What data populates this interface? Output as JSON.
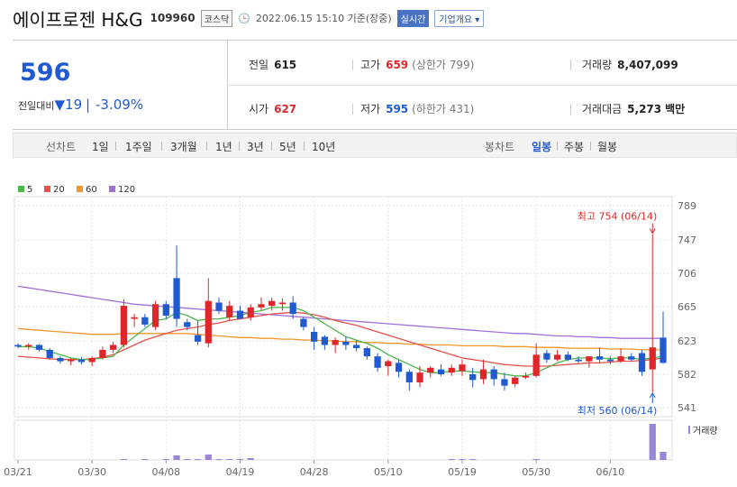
{
  "stock": {
    "name": "에이프로젠 H&G",
    "code": "109960",
    "market": "코스닥",
    "timestamp": "2022.06.15 15:10 기준(장중)",
    "realtime_label": "실시간",
    "company_info_label": "기업개요",
    "price": "596",
    "change_label": "전일대비",
    "change_value": "19",
    "change_pct": "-3.09%"
  },
  "summary": {
    "prev_label": "전일",
    "prev_value": "615",
    "high_label": "고가",
    "high_value": "659",
    "upper_limit": "(상한가 799)",
    "volume_label": "거래량",
    "volume_value": "8,407,099",
    "open_label": "시가",
    "open_value": "627",
    "low_label": "저가",
    "low_value": "595",
    "lower_limit": "(하한가 431)",
    "amount_label": "거래대금",
    "amount_value": "5,273",
    "amount_unit": "백만"
  },
  "periods": {
    "line_label": "선차트",
    "line_options": [
      "1일",
      "1주일",
      "3개월",
      "1년",
      "3년",
      "5년",
      "10년"
    ],
    "candle_label": "봉차트",
    "candle_options": [
      "일봉",
      "주봉",
      "월봉"
    ],
    "selected": "일봉"
  },
  "colors": {
    "up": "#e0262b",
    "down": "#1f5ad0",
    "ma5": "#4cb84c",
    "ma20": "#e8504a",
    "ma60": "#f0962a",
    "ma120": "#a070d8",
    "volume": "#9a86d6"
  },
  "chart_data": {
    "type": "candlestick",
    "legend": [
      "5",
      "20",
      "60",
      "120"
    ],
    "y_ticks": [
      789,
      747,
      706,
      665,
      623,
      582,
      541
    ],
    "ylim": [
      530,
      800
    ],
    "x_tick_labels": [
      "03/21",
      "03/30",
      "04/08",
      "04/19",
      "04/28",
      "05/10",
      "05/19",
      "05/30",
      "06/10"
    ],
    "x_tick_index": [
      0,
      7,
      14,
      21,
      28,
      35,
      42,
      49,
      56
    ],
    "high_annotation": "최고 754 (06/14)",
    "low_annotation": "최저 560 (06/14)",
    "volume_label": "거래량",
    "candles": [
      {
        "o": 618,
        "h": 620,
        "l": 614,
        "c": 616
      },
      {
        "o": 616,
        "h": 620,
        "l": 612,
        "c": 618
      },
      {
        "o": 618,
        "h": 619,
        "l": 610,
        "c": 612
      },
      {
        "o": 612,
        "h": 614,
        "l": 600,
        "c": 602
      },
      {
        "o": 602,
        "h": 604,
        "l": 595,
        "c": 598
      },
      {
        "o": 598,
        "h": 602,
        "l": 593,
        "c": 600
      },
      {
        "o": 600,
        "h": 603,
        "l": 594,
        "c": 597
      },
      {
        "o": 597,
        "h": 604,
        "l": 592,
        "c": 602
      },
      {
        "o": 602,
        "h": 616,
        "l": 600,
        "c": 612
      },
      {
        "o": 612,
        "h": 622,
        "l": 608,
        "c": 618
      },
      {
        "o": 618,
        "h": 674,
        "l": 615,
        "c": 666
      },
      {
        "o": 650,
        "h": 656,
        "l": 640,
        "c": 652
      },
      {
        "o": 652,
        "h": 656,
        "l": 640,
        "c": 643
      },
      {
        "o": 640,
        "h": 672,
        "l": 636,
        "c": 668
      },
      {
        "o": 668,
        "h": 672,
        "l": 650,
        "c": 654
      },
      {
        "o": 700,
        "h": 740,
        "l": 640,
        "c": 650
      },
      {
        "o": 646,
        "h": 650,
        "l": 636,
        "c": 640
      },
      {
        "o": 630,
        "h": 648,
        "l": 618,
        "c": 622
      },
      {
        "o": 620,
        "h": 700,
        "l": 615,
        "c": 672
      },
      {
        "o": 670,
        "h": 676,
        "l": 656,
        "c": 660
      },
      {
        "o": 652,
        "h": 672,
        "l": 648,
        "c": 666
      },
      {
        "o": 660,
        "h": 666,
        "l": 650,
        "c": 650
      },
      {
        "o": 652,
        "h": 668,
        "l": 648,
        "c": 664
      },
      {
        "o": 664,
        "h": 676,
        "l": 660,
        "c": 668
      },
      {
        "o": 666,
        "h": 676,
        "l": 660,
        "c": 672
      },
      {
        "o": 668,
        "h": 675,
        "l": 660,
        "c": 670
      },
      {
        "o": 670,
        "h": 678,
        "l": 650,
        "c": 656
      },
      {
        "o": 650,
        "h": 652,
        "l": 636,
        "c": 640
      },
      {
        "o": 634,
        "h": 640,
        "l": 612,
        "c": 622
      },
      {
        "o": 628,
        "h": 630,
        "l": 612,
        "c": 618
      },
      {
        "o": 618,
        "h": 627,
        "l": 608,
        "c": 624
      },
      {
        "o": 622,
        "h": 628,
        "l": 612,
        "c": 618
      },
      {
        "o": 618,
        "h": 624,
        "l": 610,
        "c": 614
      },
      {
        "o": 614,
        "h": 616,
        "l": 600,
        "c": 604
      },
      {
        "o": 604,
        "h": 608,
        "l": 585,
        "c": 590
      },
      {
        "o": 592,
        "h": 600,
        "l": 580,
        "c": 598
      },
      {
        "o": 596,
        "h": 600,
        "l": 578,
        "c": 585
      },
      {
        "o": 585,
        "h": 588,
        "l": 562,
        "c": 572
      },
      {
        "o": 572,
        "h": 592,
        "l": 566,
        "c": 584
      },
      {
        "o": 584,
        "h": 592,
        "l": 578,
        "c": 590
      },
      {
        "o": 588,
        "h": 594,
        "l": 580,
        "c": 582
      },
      {
        "o": 584,
        "h": 594,
        "l": 580,
        "c": 590
      },
      {
        "o": 586,
        "h": 600,
        "l": 580,
        "c": 594
      },
      {
        "o": 582,
        "h": 590,
        "l": 566,
        "c": 575
      },
      {
        "o": 576,
        "h": 600,
        "l": 570,
        "c": 588
      },
      {
        "o": 588,
        "h": 592,
        "l": 568,
        "c": 576
      },
      {
        "o": 576,
        "h": 584,
        "l": 562,
        "c": 568
      },
      {
        "o": 570,
        "h": 580,
        "l": 566,
        "c": 578
      },
      {
        "o": 578,
        "h": 584,
        "l": 576,
        "c": 580
      },
      {
        "o": 580,
        "h": 620,
        "l": 578,
        "c": 606
      },
      {
        "o": 608,
        "h": 612,
        "l": 596,
        "c": 600
      },
      {
        "o": 600,
        "h": 612,
        "l": 598,
        "c": 606
      },
      {
        "o": 606,
        "h": 610,
        "l": 598,
        "c": 600
      },
      {
        "o": 600,
        "h": 604,
        "l": 596,
        "c": 598
      },
      {
        "o": 598,
        "h": 604,
        "l": 590,
        "c": 604
      },
      {
        "o": 604,
        "h": 615,
        "l": 596,
        "c": 600
      },
      {
        "o": 600,
        "h": 604,
        "l": 594,
        "c": 598
      },
      {
        "o": 598,
        "h": 614,
        "l": 596,
        "c": 604
      },
      {
        "o": 604,
        "h": 608,
        "l": 598,
        "c": 600
      },
      {
        "o": 608,
        "h": 612,
        "l": 580,
        "c": 585
      },
      {
        "o": 588,
        "h": 754,
        "l": 560,
        "c": 615
      },
      {
        "o": 627,
        "h": 659,
        "l": 595,
        "c": 596
      }
    ],
    "volumes": [
      0,
      0,
      0,
      0,
      0,
      0,
      0,
      0,
      0,
      0,
      1,
      0,
      1,
      0,
      1,
      5,
      1,
      1,
      6,
      1,
      1,
      1,
      2,
      0,
      0,
      0,
      0,
      0,
      0,
      0,
      0,
      0,
      0,
      0,
      0,
      0,
      0,
      0,
      0,
      0,
      0,
      1,
      1,
      1,
      0,
      0,
      0,
      0,
      0,
      1,
      0,
      0,
      0,
      0,
      0,
      0,
      0,
      0,
      0,
      0,
      40,
      9
    ],
    "ma5": [
      616,
      616,
      614,
      610,
      606,
      602,
      600,
      600,
      602,
      604,
      618,
      628,
      638,
      648,
      650,
      658,
      654,
      648,
      650,
      650,
      652,
      654,
      658,
      660,
      664,
      664,
      664,
      660,
      652,
      644,
      636,
      628,
      624,
      620,
      614,
      606,
      600,
      594,
      588,
      584,
      584,
      586,
      586,
      585,
      584,
      584,
      582,
      580,
      580,
      584,
      590,
      596,
      600,
      602,
      602,
      602,
      601,
      602,
      602,
      600,
      602,
      604
    ],
    "ma20": [
      604,
      603,
      602,
      601,
      600,
      600,
      600,
      601,
      603,
      606,
      612,
      618,
      624,
      628,
      632,
      636,
      638,
      640,
      643,
      645,
      648,
      650,
      652,
      654,
      656,
      657,
      658,
      657,
      655,
      652,
      648,
      645,
      642,
      638,
      634,
      630,
      626,
      622,
      618,
      614,
      610,
      606,
      602,
      600,
      598,
      596,
      594,
      593,
      592,
      592,
      592,
      593,
      594,
      595,
      596,
      596,
      597,
      598,
      598,
      599,
      600,
      602
    ],
    "ma60": [
      638,
      637,
      636,
      635,
      634,
      633,
      632,
      631,
      631,
      631,
      632,
      632,
      632,
      632,
      632,
      632,
      632,
      631,
      630,
      629,
      628,
      627,
      627,
      626,
      626,
      625,
      625,
      624,
      624,
      623,
      623,
      622,
      622,
      621,
      621,
      620,
      620,
      619,
      619,
      618,
      618,
      618,
      617,
      617,
      617,
      617,
      616,
      616,
      616,
      615,
      615,
      615,
      614,
      614,
      614,
      614,
      613,
      613,
      613,
      612,
      612,
      612
    ],
    "ma120": [
      690,
      688,
      686,
      684,
      682,
      680,
      678,
      676,
      674,
      672,
      670,
      668,
      667,
      666,
      665,
      664,
      663,
      662,
      661,
      660,
      659,
      658,
      657,
      656,
      655,
      654,
      653,
      652,
      651,
      650,
      649,
      648,
      647,
      646,
      645,
      644,
      643,
      642,
      641,
      640,
      639,
      638,
      637,
      636,
      635,
      634,
      633,
      632,
      632,
      631,
      630,
      629,
      629,
      628,
      628,
      627,
      627,
      626,
      626,
      626,
      626,
      626
    ]
  }
}
